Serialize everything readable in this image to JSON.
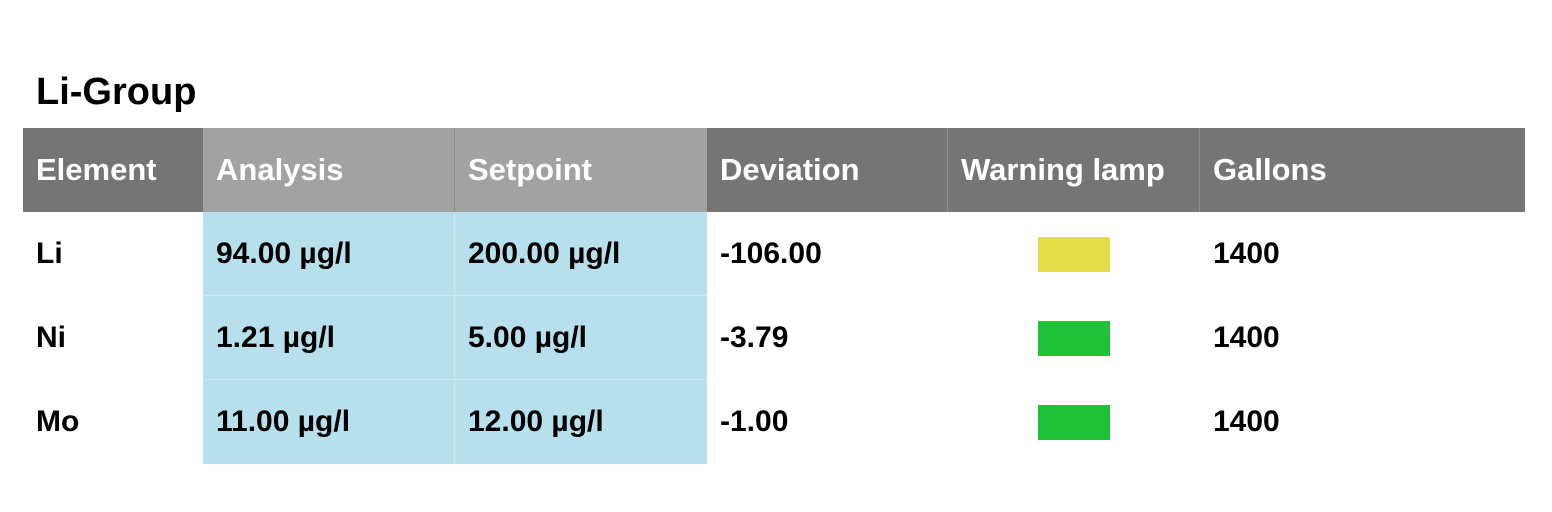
{
  "title": "Li-Group",
  "columns": [
    "Element",
    "Analysis",
    "Setpoint",
    "Deviation",
    "Warning lamp",
    "Gallons"
  ],
  "rows": [
    {
      "element": "Li",
      "analysis": "94.00 µg/l",
      "setpoint": "200.00 µg/l",
      "deviation": "-106.00",
      "lamp": "yellow-lamp",
      "lamp_color": "#e3de47",
      "gallons": "1400"
    },
    {
      "element": "Ni",
      "analysis": "1.21 µg/l",
      "setpoint": "5.00 µg/l",
      "deviation": "-3.79",
      "lamp": "green-lamp",
      "lamp_color": "#1fc237",
      "gallons": "1400"
    },
    {
      "element": "Mo",
      "analysis": "11.00 µg/l",
      "setpoint": "12.00 µg/l",
      "deviation": "-1.00",
      "lamp": "green-lamp",
      "lamp_color": "#1fc237",
      "gallons": "1400"
    }
  ],
  "colors": {
    "header_dark": "#757575",
    "header_light": "#a2a2a2",
    "highlight": "#b8e0ec"
  }
}
